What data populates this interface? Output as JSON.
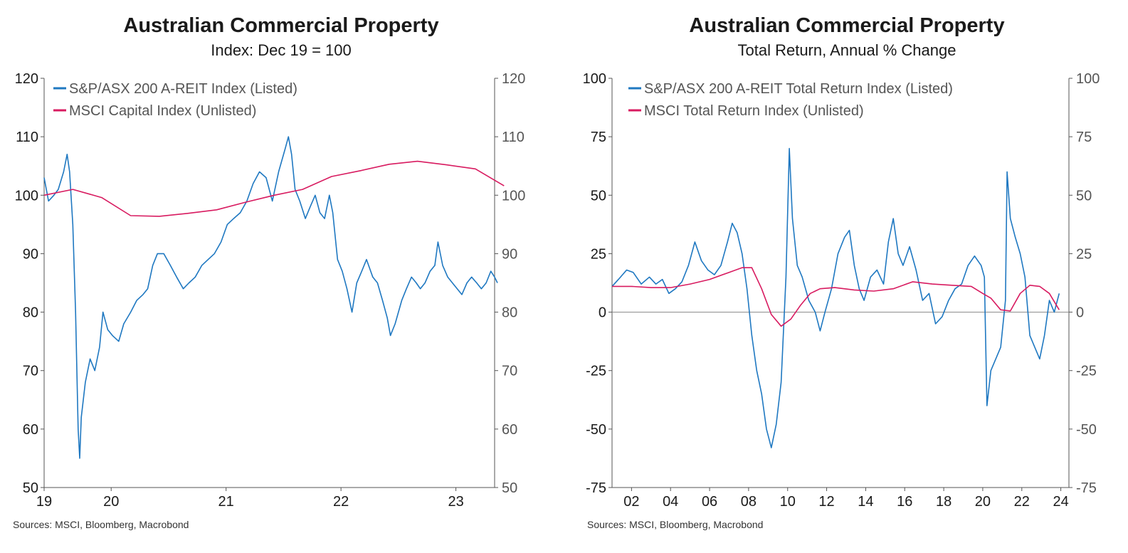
{
  "chart_data": [
    {
      "type": "line",
      "title": "Australian Commercial Property",
      "subtitle": "Index: Dec 19 = 100",
      "ylim": [
        50,
        120
      ],
      "yticks": [
        50,
        60,
        70,
        80,
        90,
        100,
        110,
        120
      ],
      "x_range": [
        "2019-12",
        "2023-11"
      ],
      "xtick_labels": [
        {
          "label": "19",
          "date": "2019-12"
        },
        {
          "label": "20",
          "date": "2020-07"
        },
        {
          "label": "21",
          "date": "2021-07"
        },
        {
          "label": "22",
          "date": "2022-07"
        },
        {
          "label": "23",
          "date": "2023-07"
        }
      ],
      "legend_position": "top-left",
      "dual_axis": true,
      "series": [
        {
          "name": "S&P/ASX 200 A-REIT Index (Listed)",
          "color": "#1f78c1",
          "points": [
            [
              "2019-12-01",
              103
            ],
            [
              "2019-12-15",
              99
            ],
            [
              "2020-01-01",
              100
            ],
            [
              "2020-01-15",
              101
            ],
            [
              "2020-02-01",
              104
            ],
            [
              "2020-02-12",
              107
            ],
            [
              "2020-02-20",
              104
            ],
            [
              "2020-03-01",
              95
            ],
            [
              "2020-03-10",
              80
            ],
            [
              "2020-03-18",
              60
            ],
            [
              "2020-03-23",
              55
            ],
            [
              "2020-03-28",
              62
            ],
            [
              "2020-04-10",
              68
            ],
            [
              "2020-04-25",
              72
            ],
            [
              "2020-05-10",
              70
            ],
            [
              "2020-05-25",
              74
            ],
            [
              "2020-06-05",
              80
            ],
            [
              "2020-06-20",
              77
            ],
            [
              "2020-07-05",
              76
            ],
            [
              "2020-07-25",
              75
            ],
            [
              "2020-08-10",
              78
            ],
            [
              "2020-09-01",
              80
            ],
            [
              "2020-09-20",
              82
            ],
            [
              "2020-10-10",
              83
            ],
            [
              "2020-10-25",
              84
            ],
            [
              "2020-11-10",
              88
            ],
            [
              "2020-11-25",
              90
            ],
            [
              "2020-12-15",
              90
            ],
            [
              "2021-01-05",
              88
            ],
            [
              "2021-01-25",
              86
            ],
            [
              "2021-02-15",
              84
            ],
            [
              "2021-03-05",
              85
            ],
            [
              "2021-03-25",
              86
            ],
            [
              "2021-04-15",
              88
            ],
            [
              "2021-05-05",
              89
            ],
            [
              "2021-05-25",
              90
            ],
            [
              "2021-06-15",
              92
            ],
            [
              "2021-07-05",
              95
            ],
            [
              "2021-07-25",
              96
            ],
            [
              "2021-08-15",
              97
            ],
            [
              "2021-09-05",
              99
            ],
            [
              "2021-09-25",
              102
            ],
            [
              "2021-10-15",
              104
            ],
            [
              "2021-11-05",
              103
            ],
            [
              "2021-11-25",
              99
            ],
            [
              "2021-12-15",
              104
            ],
            [
              "2022-01-05",
              108
            ],
            [
              "2022-01-15",
              110
            ],
            [
              "2022-01-25",
              107
            ],
            [
              "2022-02-05",
              101
            ],
            [
              "2022-02-20",
              99
            ],
            [
              "2022-03-10",
              96
            ],
            [
              "2022-03-25",
              98
            ],
            [
              "2022-04-10",
              100
            ],
            [
              "2022-04-25",
              97
            ],
            [
              "2022-05-10",
              96
            ],
            [
              "2022-05-25",
              100
            ],
            [
              "2022-06-05",
              97
            ],
            [
              "2022-06-20",
              89
            ],
            [
              "2022-07-05",
              87
            ],
            [
              "2022-07-20",
              84
            ],
            [
              "2022-08-05",
              80
            ],
            [
              "2022-08-20",
              85
            ],
            [
              "2022-09-05",
              87
            ],
            [
              "2022-09-20",
              89
            ],
            [
              "2022-10-10",
              86
            ],
            [
              "2022-10-25",
              85
            ],
            [
              "2022-11-10",
              82
            ],
            [
              "2022-11-25",
              79
            ],
            [
              "2022-12-05",
              76
            ],
            [
              "2022-12-20",
              78
            ],
            [
              "2023-01-10",
              82
            ],
            [
              "2023-01-25",
              84
            ],
            [
              "2023-02-10",
              86
            ],
            [
              "2023-02-25",
              85
            ],
            [
              "2023-03-10",
              84
            ],
            [
              "2023-03-25",
              85
            ],
            [
              "2023-04-10",
              87
            ],
            [
              "2023-04-25",
              88
            ],
            [
              "2023-05-05",
              92
            ],
            [
              "2023-05-20",
              88
            ],
            [
              "2023-06-05",
              86
            ],
            [
              "2023-06-20",
              85
            ],
            [
              "2023-07-05",
              84
            ],
            [
              "2023-07-20",
              83
            ],
            [
              "2023-08-05",
              85
            ],
            [
              "2023-08-20",
              86
            ],
            [
              "2023-09-05",
              85
            ],
            [
              "2023-09-20",
              84
            ],
            [
              "2023-10-05",
              85
            ],
            [
              "2023-10-20",
              87
            ],
            [
              "2023-11-01",
              86
            ],
            [
              "2023-11-10",
              85
            ]
          ]
        },
        {
          "name": "MSCI Capital Index (Unlisted)",
          "color": "#d81b60",
          "points": [
            [
              "2019-12-01",
              100
            ],
            [
              "2020-03-01",
              101
            ],
            [
              "2020-06-01",
              99.6
            ],
            [
              "2020-09-01",
              96.5
            ],
            [
              "2020-12-01",
              96.4
            ],
            [
              "2021-03-01",
              96.9
            ],
            [
              "2021-06-01",
              97.5
            ],
            [
              "2021-09-01",
              98.8
            ],
            [
              "2021-12-01",
              100
            ],
            [
              "2022-03-01",
              101
            ],
            [
              "2022-06-01",
              103.2
            ],
            [
              "2022-09-01",
              104.2
            ],
            [
              "2022-12-01",
              105.3
            ],
            [
              "2023-03-01",
              105.8
            ],
            [
              "2023-06-01",
              105.2
            ],
            [
              "2023-09-01",
              104.5
            ],
            [
              "2023-12-01",
              101.6
            ]
          ]
        }
      ]
    },
    {
      "type": "line",
      "title": "Australian Commercial Property",
      "subtitle": "Total Return, Annual % Change",
      "ylim": [
        -75,
        100
      ],
      "yticks": [
        -75,
        -50,
        -25,
        0,
        25,
        50,
        75,
        100
      ],
      "ytick_labels": [
        "-75",
        "-50",
        "-25",
        "0",
        "25",
        "50",
        "75",
        "100"
      ],
      "x_range": [
        "2001-01",
        "2024-06"
      ],
      "xtick_labels": [
        {
          "label": "02",
          "date": "2002-01"
        },
        {
          "label": "04",
          "date": "2004-01"
        },
        {
          "label": "06",
          "date": "2006-01"
        },
        {
          "label": "08",
          "date": "2008-01"
        },
        {
          "label": "10",
          "date": "2010-01"
        },
        {
          "label": "12",
          "date": "2012-01"
        },
        {
          "label": "14",
          "date": "2014-01"
        },
        {
          "label": "16",
          "date": "2016-01"
        },
        {
          "label": "18",
          "date": "2018-01"
        },
        {
          "label": "20",
          "date": "2020-01"
        },
        {
          "label": "22",
          "date": "2022-01"
        },
        {
          "label": "24",
          "date": "2024-01"
        }
      ],
      "legend_position": "top-left",
      "dual_axis": true,
      "zero_line": true,
      "series": [
        {
          "name": "S&P/ASX 200 A-REIT Total Return Index (Listed)",
          "color": "#1f78c1",
          "points": [
            [
              "2001-01-01",
              11
            ],
            [
              "2001-05-01",
              14
            ],
            [
              "2001-10-01",
              18
            ],
            [
              "2002-02-01",
              17
            ],
            [
              "2002-07-01",
              12
            ],
            [
              "2002-12-01",
              15
            ],
            [
              "2003-04-01",
              12
            ],
            [
              "2003-08-01",
              14
            ],
            [
              "2003-12-01",
              8
            ],
            [
              "2004-04-01",
              10
            ],
            [
              "2004-08-01",
              13
            ],
            [
              "2004-12-01",
              20
            ],
            [
              "2005-04-01",
              30
            ],
            [
              "2005-08-01",
              22
            ],
            [
              "2005-12-01",
              18
            ],
            [
              "2006-04-01",
              16
            ],
            [
              "2006-08-01",
              20
            ],
            [
              "2006-12-01",
              30
            ],
            [
              "2007-03-01",
              38
            ],
            [
              "2007-06-01",
              34
            ],
            [
              "2007-09-01",
              25
            ],
            [
              "2007-12-01",
              10
            ],
            [
              "2008-03-01",
              -10
            ],
            [
              "2008-06-01",
              -25
            ],
            [
              "2008-09-01",
              -35
            ],
            [
              "2008-12-01",
              -50
            ],
            [
              "2009-03-01",
              -58
            ],
            [
              "2009-06-01",
              -48
            ],
            [
              "2009-09-01",
              -30
            ],
            [
              "2009-12-01",
              15
            ],
            [
              "2010-02-01",
              70
            ],
            [
              "2010-04-01",
              40
            ],
            [
              "2010-07-01",
              20
            ],
            [
              "2010-10-01",
              15
            ],
            [
              "2011-02-01",
              5
            ],
            [
              "2011-06-01",
              0
            ],
            [
              "2011-09-01",
              -8
            ],
            [
              "2011-12-01",
              0
            ],
            [
              "2012-04-01",
              10
            ],
            [
              "2012-08-01",
              25
            ],
            [
              "2012-12-01",
              32
            ],
            [
              "2013-03-01",
              35
            ],
            [
              "2013-06-01",
              20
            ],
            [
              "2013-09-01",
              10
            ],
            [
              "2013-12-01",
              5
            ],
            [
              "2014-04-01",
              15
            ],
            [
              "2014-08-01",
              18
            ],
            [
              "2014-12-01",
              12
            ],
            [
              "2015-03-01",
              30
            ],
            [
              "2015-06-01",
              40
            ],
            [
              "2015-09-01",
              25
            ],
            [
              "2015-12-01",
              20
            ],
            [
              "2016-04-01",
              28
            ],
            [
              "2016-08-01",
              18
            ],
            [
              "2016-12-01",
              5
            ],
            [
              "2017-04-01",
              8
            ],
            [
              "2017-08-01",
              -5
            ],
            [
              "2017-12-01",
              -2
            ],
            [
              "2018-04-01",
              5
            ],
            [
              "2018-08-01",
              10
            ],
            [
              "2018-12-01",
              12
            ],
            [
              "2019-04-01",
              20
            ],
            [
              "2019-08-01",
              24
            ],
            [
              "2019-12-01",
              20
            ],
            [
              "2020-02-01",
              15
            ],
            [
              "2020-03-20",
              -40
            ],
            [
              "2020-06-01",
              -25
            ],
            [
              "2020-09-01",
              -20
            ],
            [
              "2020-12-01",
              -15
            ],
            [
              "2021-03-01",
              5
            ],
            [
              "2021-04-01",
              60
            ],
            [
              "2021-06-01",
              40
            ],
            [
              "2021-09-01",
              32
            ],
            [
              "2021-12-01",
              25
            ],
            [
              "2022-03-01",
              15
            ],
            [
              "2022-06-01",
              -10
            ],
            [
              "2022-09-01",
              -15
            ],
            [
              "2022-12-01",
              -20
            ],
            [
              "2023-03-01",
              -10
            ],
            [
              "2023-06-01",
              5
            ],
            [
              "2023-09-01",
              0
            ],
            [
              "2023-12-01",
              8
            ]
          ]
        },
        {
          "name": "MSCI Total Return Index (Unlisted)",
          "color": "#d81b60",
          "points": [
            [
              "2001-01-01",
              11
            ],
            [
              "2002-01-01",
              11
            ],
            [
              "2003-01-01",
              10.5
            ],
            [
              "2004-01-01",
              10.5
            ],
            [
              "2005-01-01",
              12
            ],
            [
              "2006-01-01",
              14
            ],
            [
              "2007-01-01",
              17
            ],
            [
              "2007-09-01",
              19
            ],
            [
              "2008-03-01",
              19
            ],
            [
              "2008-09-01",
              10
            ],
            [
              "2009-03-01",
              -1
            ],
            [
              "2009-09-01",
              -6
            ],
            [
              "2010-03-01",
              -3
            ],
            [
              "2010-09-01",
              3
            ],
            [
              "2011-03-01",
              8
            ],
            [
              "2011-09-01",
              10
            ],
            [
              "2012-06-01",
              10.5
            ],
            [
              "2013-06-01",
              9.5
            ],
            [
              "2014-06-01",
              9
            ],
            [
              "2015-06-01",
              10
            ],
            [
              "2016-06-01",
              13
            ],
            [
              "2017-06-01",
              12
            ],
            [
              "2018-06-01",
              11.5
            ],
            [
              "2019-06-01",
              11
            ],
            [
              "2020-01-01",
              8
            ],
            [
              "2020-06-01",
              6
            ],
            [
              "2020-12-01",
              1
            ],
            [
              "2021-06-01",
              0.5
            ],
            [
              "2021-12-01",
              8
            ],
            [
              "2022-06-01",
              11.5
            ],
            [
              "2022-12-01",
              11
            ],
            [
              "2023-06-01",
              8
            ],
            [
              "2023-12-01",
              1
            ]
          ]
        }
      ]
    }
  ],
  "footer": {
    "left_source": "Sources: MSCI, Bloomberg, Macrobond",
    "right_source": "Sources: MSCI, Bloomberg, Macrobond"
  }
}
